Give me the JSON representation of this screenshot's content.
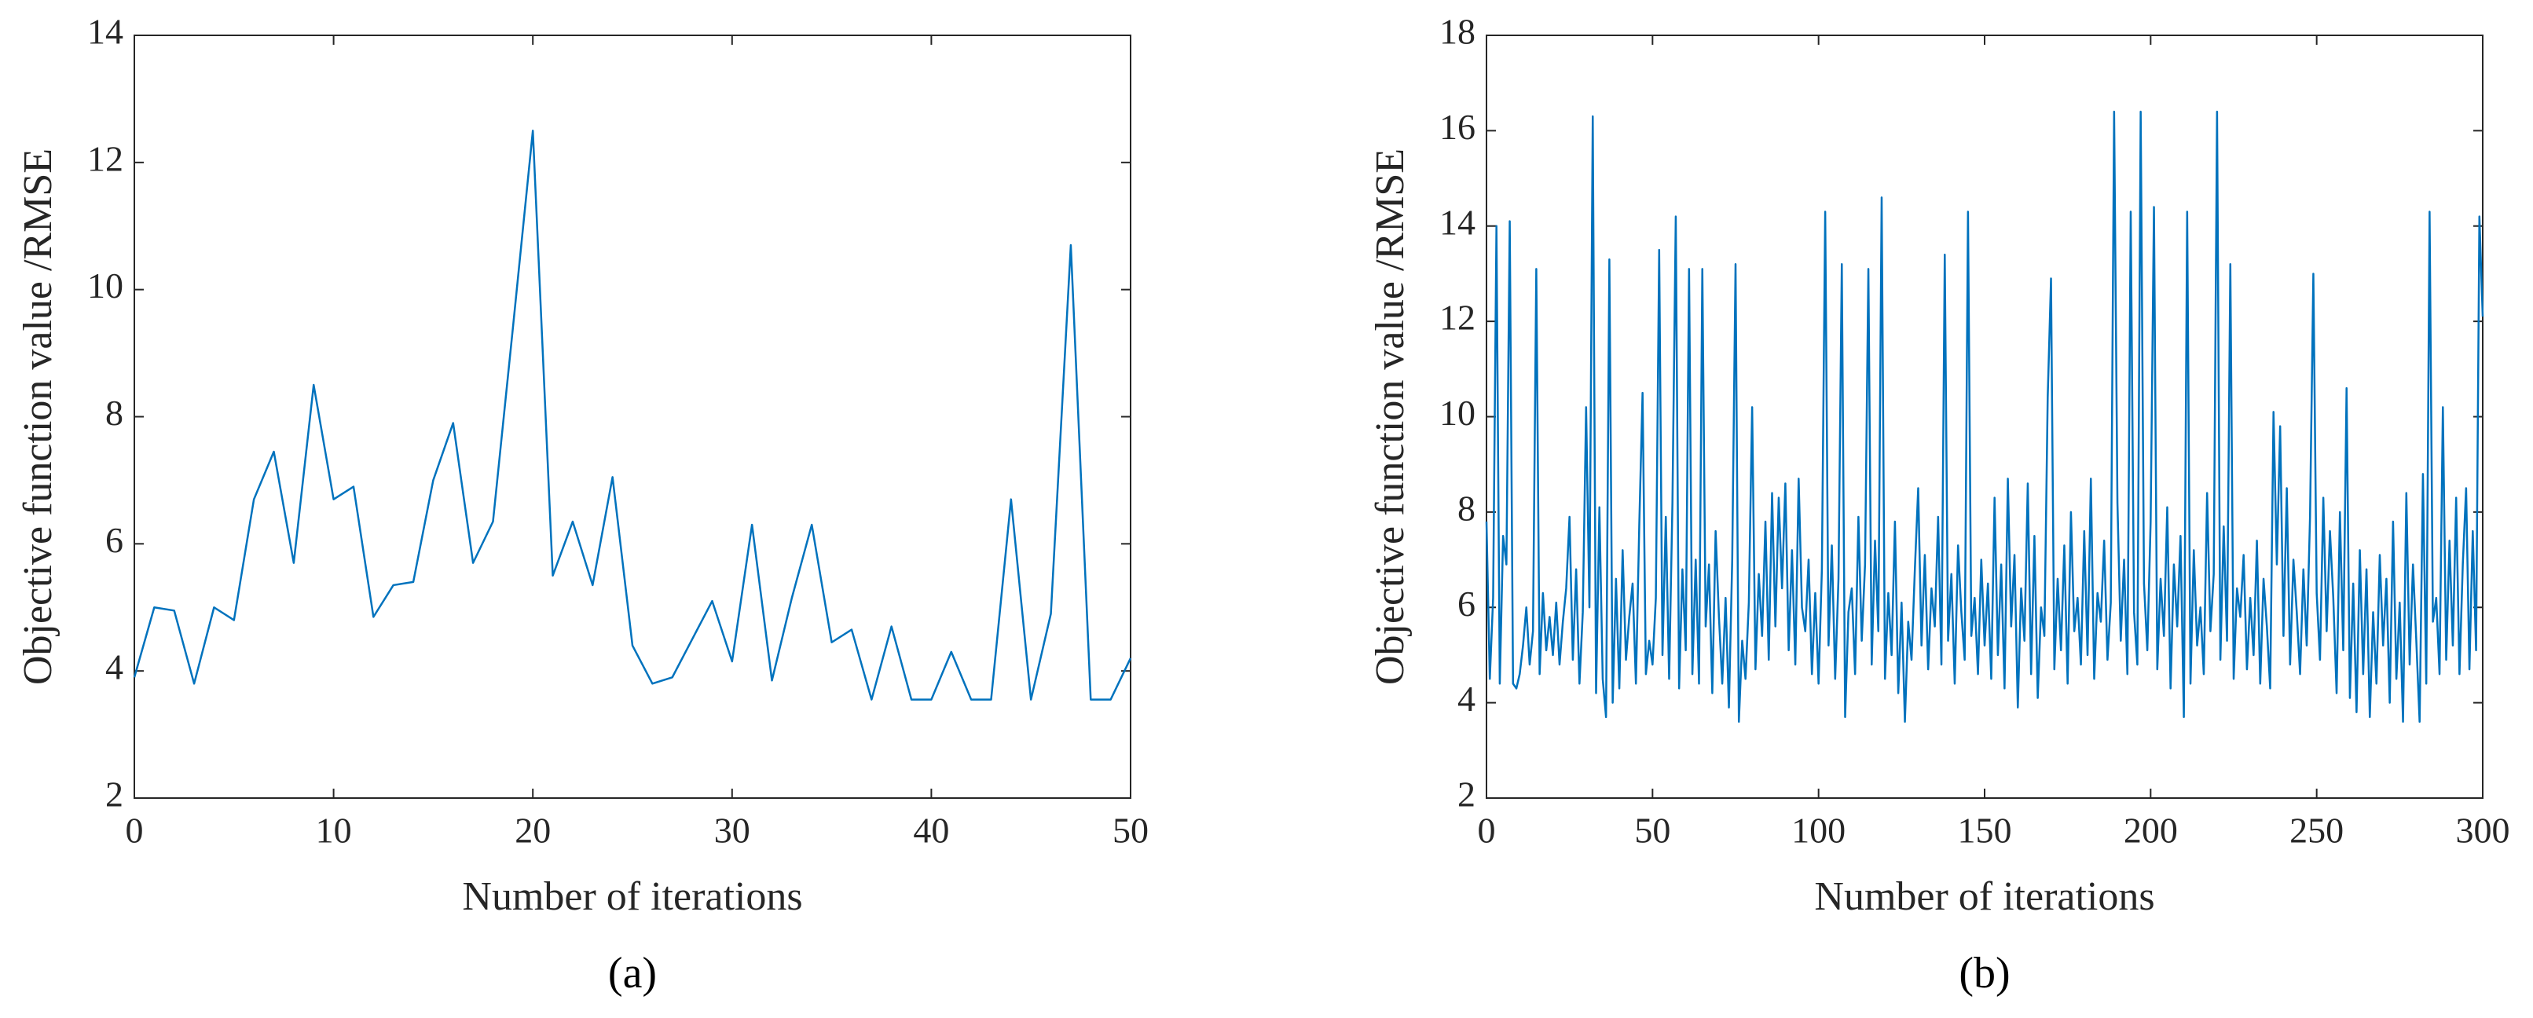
{
  "chart_data": [
    {
      "type": "line",
      "xlabel": "Number of iterations",
      "ylabel": "Objective function value /RMSE",
      "caption": "(a)",
      "color": "#0072bd",
      "x": [
        0,
        1,
        2,
        3,
        4,
        5,
        6,
        7,
        8,
        9,
        10,
        11,
        12,
        13,
        14,
        15,
        16,
        17,
        18,
        19,
        20,
        21,
        22,
        23,
        24,
        25,
        26,
        27,
        28,
        29,
        30,
        31,
        32,
        33,
        34,
        35,
        36,
        37,
        38,
        39,
        40,
        41,
        42,
        43,
        44,
        45,
        46,
        47,
        48,
        49,
        50
      ],
      "values": [
        3.9,
        5.0,
        4.95,
        3.8,
        5.0,
        4.8,
        6.7,
        7.45,
        5.7,
        8.5,
        6.7,
        6.9,
        4.85,
        5.35,
        5.4,
        7.0,
        7.9,
        5.7,
        6.35,
        9.4,
        12.5,
        5.5,
        6.35,
        5.35,
        7.05,
        4.4,
        3.8,
        3.9,
        4.5,
        5.1,
        4.15,
        6.3,
        3.85,
        5.15,
        6.3,
        4.45,
        4.65,
        3.55,
        4.7,
        3.55,
        3.55,
        4.3,
        3.55,
        3.55,
        6.7,
        3.55,
        4.9,
        10.7,
        3.55,
        3.55,
        4.2
      ],
      "xlim": [
        0,
        50
      ],
      "xticks": [
        0,
        10,
        20,
        30,
        40,
        50
      ],
      "ylim": [
        2,
        14
      ],
      "yticks": [
        2,
        4,
        6,
        8,
        10,
        12,
        14
      ]
    },
    {
      "type": "line",
      "xlabel": "Number of iterations",
      "ylabel": "Objective function value /RMSE",
      "caption": "(b)",
      "color": "#0072bd",
      "x": [
        0,
        1,
        2,
        3,
        4,
        5,
        6,
        7,
        8,
        9,
        10,
        11,
        12,
        13,
        14,
        15,
        16,
        17,
        18,
        19,
        20,
        21,
        22,
        23,
        24,
        25,
        26,
        27,
        28,
        29,
        30,
        31,
        32,
        33,
        34,
        35,
        36,
        37,
        38,
        39,
        40,
        41,
        42,
        43,
        44,
        45,
        46,
        47,
        48,
        49,
        50,
        51,
        52,
        53,
        54,
        55,
        56,
        57,
        58,
        59,
        60,
        61,
        62,
        63,
        64,
        65,
        66,
        67,
        68,
        69,
        70,
        71,
        72,
        73,
        74,
        75,
        76,
        77,
        78,
        79,
        80,
        81,
        82,
        83,
        84,
        85,
        86,
        87,
        88,
        89,
        90,
        91,
        92,
        93,
        94,
        95,
        96,
        97,
        98,
        99,
        100,
        101,
        102,
        103,
        104,
        105,
        106,
        107,
        108,
        109,
        110,
        111,
        112,
        113,
        114,
        115,
        116,
        117,
        118,
        119,
        120,
        121,
        122,
        123,
        124,
        125,
        126,
        127,
        128,
        129,
        130,
        131,
        132,
        133,
        134,
        135,
        136,
        137,
        138,
        139,
        140,
        141,
        142,
        143,
        144,
        145,
        146,
        147,
        148,
        149,
        150,
        151,
        152,
        153,
        154,
        155,
        156,
        157,
        158,
        159,
        160,
        161,
        162,
        163,
        164,
        165,
        166,
        167,
        168,
        169,
        170,
        171,
        172,
        173,
        174,
        175,
        176,
        177,
        178,
        179,
        180,
        181,
        182,
        183,
        184,
        185,
        186,
        187,
        188,
        189,
        190,
        191,
        192,
        193,
        194,
        195,
        196,
        197,
        198,
        199,
        200,
        201,
        202,
        203,
        204,
        205,
        206,
        207,
        208,
        209,
        210,
        211,
        212,
        213,
        214,
        215,
        216,
        217,
        218,
        219,
        220,
        221,
        222,
        223,
        224,
        225,
        226,
        227,
        228,
        229,
        230,
        231,
        232,
        233,
        234,
        235,
        236,
        237,
        238,
        239,
        240,
        241,
        242,
        243,
        244,
        245,
        246,
        247,
        248,
        249,
        250,
        251,
        252,
        253,
        254,
        255,
        256,
        257,
        258,
        259,
        260,
        261,
        262,
        263,
        264,
        265,
        266,
        267,
        268,
        269,
        270,
        271,
        272,
        273,
        274,
        275,
        276,
        277,
        278,
        279,
        280,
        281,
        282,
        283,
        284,
        285,
        286,
        287,
        288,
        289,
        290,
        291,
        292,
        293,
        294,
        295,
        296,
        297,
        298,
        299,
        300
      ],
      "values": [
        7.8,
        4.5,
        6.2,
        14.0,
        4.4,
        7.5,
        6.9,
        14.1,
        4.4,
        4.3,
        4.6,
        5.2,
        6.0,
        4.8,
        5.5,
        13.1,
        4.6,
        6.3,
        5.1,
        5.8,
        5.0,
        6.1,
        4.8,
        5.7,
        6.4,
        7.9,
        4.9,
        6.8,
        4.4,
        5.9,
        10.2,
        6.0,
        16.3,
        4.2,
        8.1,
        4.5,
        3.7,
        13.3,
        4.0,
        6.6,
        4.3,
        7.2,
        4.9,
        5.8,
        6.5,
        4.4,
        7.7,
        10.5,
        4.6,
        5.3,
        4.8,
        6.2,
        13.5,
        5.0,
        7.9,
        4.5,
        8.2,
        14.2,
        4.3,
        6.8,
        5.1,
        13.1,
        4.6,
        7.0,
        4.4,
        13.1,
        5.6,
        6.9,
        4.2,
        7.6,
        5.8,
        4.4,
        6.2,
        3.9,
        7.0,
        13.2,
        3.6,
        5.3,
        4.5,
        6.1,
        10.2,
        4.7,
        6.7,
        5.4,
        7.8,
        4.9,
        8.4,
        5.6,
        8.3,
        6.4,
        8.6,
        5.1,
        7.2,
        4.8,
        8.7,
        6.0,
        5.5,
        7.0,
        4.6,
        6.3,
        4.4,
        6.8,
        14.3,
        5.2,
        7.3,
        4.5,
        6.6,
        13.2,
        3.7,
        5.9,
        6.4,
        4.6,
        7.9,
        5.3,
        6.9,
        13.1,
        4.8,
        7.4,
        5.5,
        14.6,
        4.5,
        6.3,
        5.0,
        7.8,
        4.2,
        6.1,
        3.6,
        5.7,
        4.9,
        6.8,
        8.5,
        5.2,
        7.1,
        4.7,
        6.4,
        5.6,
        7.9,
        4.8,
        13.4,
        5.3,
        6.7,
        4.4,
        7.3,
        5.9,
        4.9,
        14.3,
        5.4,
        6.2,
        4.6,
        7.0,
        5.2,
        6.5,
        4.5,
        8.3,
        5.0,
        6.9,
        4.3,
        8.7,
        5.6,
        7.1,
        3.9,
        6.4,
        5.3,
        8.6,
        4.6,
        7.5,
        4.1,
        6.0,
        5.4,
        10.4,
        12.9,
        4.7,
        6.6,
        5.1,
        7.3,
        4.4,
        8.0,
        5.5,
        6.2,
        4.8,
        7.6,
        5.0,
        8.7,
        4.5,
        6.3,
        5.7,
        7.4,
        4.9,
        6.1,
        16.4,
        8.2,
        5.3,
        7.0,
        4.6,
        14.3,
        5.9,
        4.8,
        16.4,
        6.5,
        5.1,
        7.8,
        14.4,
        4.7,
        6.6,
        5.4,
        8.1,
        4.3,
        6.9,
        5.6,
        7.5,
        3.7,
        14.3,
        4.4,
        7.2,
        5.2,
        6.0,
        4.6,
        8.4,
        5.5,
        6.7,
        16.4,
        4.9,
        7.7,
        5.3,
        13.2,
        4.5,
        6.4,
        5.8,
        7.1,
        4.7,
        6.2,
        5.0,
        7.4,
        4.4,
        6.6,
        5.6,
        4.3,
        10.1,
        6.9,
        9.8,
        5.4,
        8.5,
        4.8,
        7.0,
        5.9,
        4.6,
        6.8,
        5.2,
        7.9,
        13.0,
        6.3,
        4.9,
        8.3,
        5.5,
        7.6,
        6.2,
        4.2,
        8.0,
        5.1,
        10.6,
        4.1,
        6.5,
        3.8,
        7.2,
        4.6,
        6.8,
        3.7,
        5.9,
        4.4,
        7.1,
        5.2,
        6.6,
        4.0,
        7.8,
        4.5,
        6.1,
        3.6,
        8.4,
        4.8,
        6.9,
        5.3,
        3.6,
        8.8,
        4.4,
        14.3,
        5.7,
        6.2,
        4.6,
        10.2,
        4.9,
        7.4,
        5.2,
        8.3,
        4.6,
        6.9,
        8.5,
        4.7,
        7.6,
        5.1,
        14.2,
        12.1
      ],
      "xlim": [
        0,
        300
      ],
      "xticks": [
        0,
        50,
        100,
        150,
        200,
        250,
        300
      ],
      "ylim": [
        2,
        18
      ],
      "yticks": [
        2,
        4,
        6,
        8,
        10,
        12,
        14,
        16,
        18
      ]
    }
  ]
}
